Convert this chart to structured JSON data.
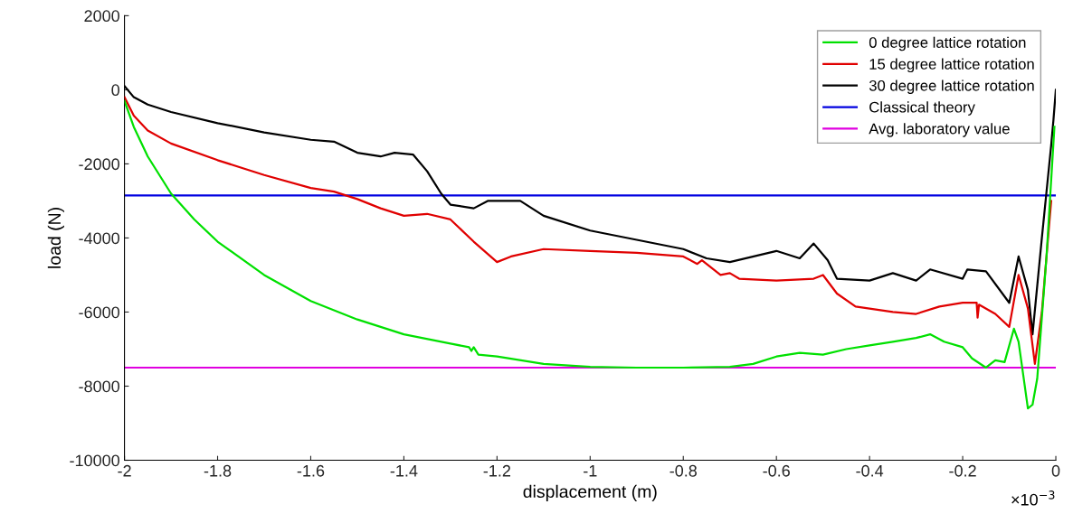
{
  "chart_data": {
    "type": "line",
    "xlabel": "displacement (m)",
    "ylabel": "load (N)",
    "xlim": [
      -2,
      0
    ],
    "ylim": [
      -10000,
      2000
    ],
    "xticks": [
      -2,
      -1.8,
      -1.6,
      -1.4,
      -1.2,
      -1,
      -0.8,
      -0.6,
      -0.4,
      -0.2,
      0
    ],
    "yticks": [
      -10000,
      -8000,
      -6000,
      -4000,
      -2000,
      0,
      2000
    ],
    "grid": false,
    "legend": "top right",
    "annotations": [
      "×10$^{−3}$"
    ],
    "series": [
      {
        "name": "0 degree lattice rotation",
        "color": "#00e000",
        "x": [
          -2,
          -1.98,
          -1.95,
          -1.9,
          -1.85,
          -1.8,
          -1.7,
          -1.6,
          -1.5,
          -1.4,
          -1.3,
          -1.26,
          -1.255,
          -1.25,
          -1.24,
          -1.2,
          -1.1,
          -1.0,
          -0.9,
          -0.8,
          -0.7,
          -0.65,
          -0.6,
          -0.55,
          -0.5,
          -0.45,
          -0.4,
          -0.35,
          -0.3,
          -0.27,
          -0.24,
          -0.2,
          -0.18,
          -0.15,
          -0.13,
          -0.11,
          -0.09,
          -0.08,
          -0.07,
          -0.06,
          -0.05,
          -0.04,
          -0.02,
          -0.003
        ],
        "values": [
          -300,
          -1000,
          -1800,
          -2800,
          -3500,
          -4100,
          -5000,
          -5700,
          -6200,
          -6600,
          -6850,
          -6950,
          -7050,
          -6950,
          -7150,
          -7200,
          -7400,
          -7480,
          -7500,
          -7500,
          -7480,
          -7400,
          -7200,
          -7100,
          -7150,
          -7000,
          -6900,
          -6800,
          -6700,
          -6600,
          -6800,
          -6950,
          -7250,
          -7500,
          -7300,
          -7350,
          -6450,
          -6800,
          -7700,
          -8600,
          -8500,
          -7800,
          -4500,
          -1000
        ]
      },
      {
        "name": "15 degree lattice rotation",
        "color": "#e00000",
        "x": [
          -2,
          -1.98,
          -1.95,
          -1.9,
          -1.8,
          -1.7,
          -1.6,
          -1.55,
          -1.5,
          -1.45,
          -1.4,
          -1.35,
          -1.3,
          -1.25,
          -1.2,
          -1.17,
          -1.1,
          -1.0,
          -0.9,
          -0.8,
          -0.77,
          -0.76,
          -0.72,
          -0.7,
          -0.68,
          -0.6,
          -0.52,
          -0.5,
          -0.47,
          -0.43,
          -0.35,
          -0.3,
          -0.25,
          -0.2,
          -0.17,
          -0.168,
          -0.165,
          -0.13,
          -0.1,
          -0.08,
          -0.06,
          -0.045,
          -0.03,
          -0.01
        ],
        "values": [
          -200,
          -700,
          -1100,
          -1450,
          -1900,
          -2300,
          -2650,
          -2750,
          -2950,
          -3200,
          -3400,
          -3350,
          -3500,
          -4100,
          -4650,
          -4500,
          -4300,
          -4350,
          -4400,
          -4500,
          -4700,
          -4600,
          -5000,
          -4950,
          -5100,
          -5150,
          -5100,
          -5000,
          -5500,
          -5850,
          -6000,
          -6050,
          -5850,
          -5750,
          -5750,
          -6150,
          -5800,
          -6050,
          -6400,
          -5000,
          -5900,
          -7400,
          -6000,
          -3000
        ]
      },
      {
        "name": "30 degree lattice rotation",
        "color": "#000000",
        "x": [
          -2,
          -1.98,
          -1.95,
          -1.9,
          -1.8,
          -1.7,
          -1.6,
          -1.55,
          -1.5,
          -1.45,
          -1.42,
          -1.38,
          -1.35,
          -1.32,
          -1.3,
          -1.25,
          -1.22,
          -1.15,
          -1.1,
          -1.0,
          -0.9,
          -0.8,
          -0.75,
          -0.7,
          -0.6,
          -0.55,
          -0.52,
          -0.49,
          -0.47,
          -0.4,
          -0.35,
          -0.3,
          -0.27,
          -0.2,
          -0.19,
          -0.15,
          -0.1,
          -0.08,
          -0.06,
          -0.05,
          -0.03,
          -0.01,
          -0.005,
          0
        ],
        "values": [
          100,
          -200,
          -400,
          -600,
          -900,
          -1150,
          -1350,
          -1400,
          -1700,
          -1800,
          -1700,
          -1750,
          -2200,
          -2800,
          -3100,
          -3200,
          -3000,
          -3000,
          -3400,
          -3800,
          -4050,
          -4300,
          -4550,
          -4650,
          -4350,
          -4550,
          -4150,
          -4600,
          -5100,
          -5150,
          -4950,
          -5150,
          -4850,
          -5100,
          -4850,
          -4900,
          -5750,
          -4500,
          -5400,
          -6600,
          -4000,
          -1500,
          -800,
          0
        ]
      }
    ],
    "ref_lines": [
      {
        "axis": "y",
        "value": -2850,
        "label": "Classical theory",
        "color": "#0000e0"
      },
      {
        "axis": "y",
        "value": -7500,
        "label": "Avg. laboratory value",
        "color": "#e000e0"
      }
    ]
  }
}
